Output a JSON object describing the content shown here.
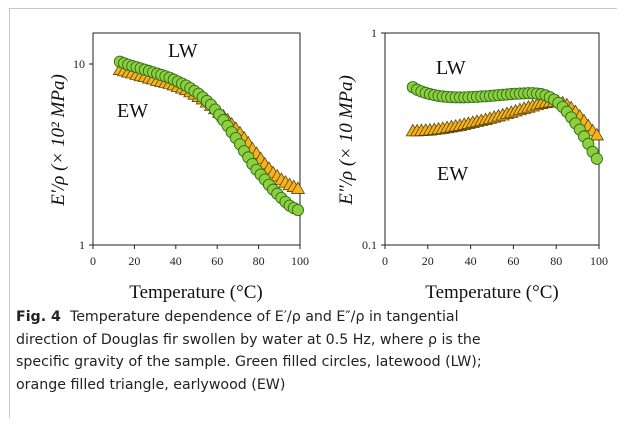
{
  "caption": {
    "label": "Fig. 4",
    "line1": "Temperature dependence of E′/ρ and E″/ρ in tangential",
    "line2": "direction of Douglas fir swollen by water at 0.5 Hz, where ρ is the",
    "line3": "specific gravity of the sample. Green filled circles, latewood (LW);",
    "line4": "orange filled triangle, earlywood (EW)"
  },
  "colors": {
    "lw_fill": "#8dcf3f",
    "lw_stroke": "#2e6d17",
    "ew_fill": "#f5b21a",
    "ew_stroke": "#5a4310"
  },
  "chart_data": [
    {
      "type": "scatter",
      "ylabel": "E′/ρ (× 10² MPa)",
      "xlabel": "Temperature (°C)",
      "xlim": [
        0,
        100
      ],
      "ylim": [
        1,
        15
      ],
      "y_scale": "log",
      "xticks": [
        "0",
        "20",
        "40",
        "60",
        "80",
        "100"
      ],
      "yticks": [
        "1",
        "10"
      ],
      "grid": false,
      "series": [
        {
          "name": "LW",
          "x": [
            13,
            15,
            17,
            19,
            21,
            23,
            25,
            27,
            29,
            31,
            33,
            35,
            37,
            39,
            41,
            43,
            45,
            47,
            49,
            51,
            53,
            55,
            57,
            59,
            61,
            63,
            65,
            67,
            69,
            71,
            73,
            75,
            77,
            79,
            81,
            83,
            85,
            87,
            89,
            91,
            93,
            95,
            97,
            99
          ],
          "y": [
            10.3,
            10.1,
            9.9,
            9.75,
            9.6,
            9.45,
            9.3,
            9.15,
            9.0,
            8.85,
            8.7,
            8.55,
            8.4,
            8.2,
            8.0,
            7.8,
            7.6,
            7.35,
            7.1,
            6.85,
            6.55,
            6.25,
            5.95,
            5.6,
            5.25,
            4.9,
            4.55,
            4.2,
            3.9,
            3.6,
            3.3,
            3.05,
            2.8,
            2.6,
            2.45,
            2.3,
            2.15,
            2.02,
            1.92,
            1.82,
            1.73,
            1.65,
            1.6,
            1.56
          ]
        },
        {
          "name": "EW",
          "x": [
            13,
            15,
            17,
            19,
            21,
            23,
            25,
            27,
            29,
            31,
            33,
            35,
            37,
            39,
            41,
            43,
            45,
            47,
            49,
            51,
            53,
            55,
            57,
            59,
            61,
            63,
            65,
            67,
            69,
            71,
            73,
            75,
            77,
            79,
            81,
            83,
            85,
            87,
            89,
            91,
            93,
            95,
            97,
            99
          ],
          "y": [
            9.3,
            9.15,
            9.0,
            8.9,
            8.75,
            8.6,
            8.5,
            8.35,
            8.25,
            8.1,
            8.0,
            7.9,
            7.8,
            7.65,
            7.5,
            7.35,
            7.2,
            7.0,
            6.8,
            6.6,
            6.4,
            6.15,
            5.9,
            5.65,
            5.4,
            5.15,
            4.9,
            4.65,
            4.4,
            4.15,
            3.9,
            3.65,
            3.4,
            3.2,
            3.0,
            2.8,
            2.65,
            2.5,
            2.4,
            2.3,
            2.22,
            2.15,
            2.1,
            2.05
          ]
        }
      ]
    },
    {
      "type": "scatter",
      "ylabel": "E″/ρ (× 10 MPa)",
      "xlabel": "Temperature (°C)",
      "xlim": [
        0,
        100
      ],
      "ylim": [
        0.1,
        1
      ],
      "y_scale": "log",
      "xticks": [
        "0",
        "20",
        "40",
        "60",
        "80",
        "100"
      ],
      "yticks": [
        "0.1",
        "1"
      ],
      "grid": false,
      "series": [
        {
          "name": "LW",
          "x": [
            13,
            15,
            17,
            19,
            21,
            23,
            25,
            27,
            29,
            31,
            33,
            35,
            37,
            39,
            41,
            43,
            45,
            47,
            49,
            51,
            53,
            55,
            57,
            59,
            61,
            63,
            65,
            67,
            69,
            71,
            73,
            75,
            77,
            79,
            81,
            83,
            85,
            87,
            89,
            91,
            93,
            95,
            97,
            99
          ],
          "y": [
            0.555,
            0.54,
            0.53,
            0.522,
            0.515,
            0.51,
            0.505,
            0.502,
            0.5,
            0.498,
            0.497,
            0.497,
            0.497,
            0.498,
            0.499,
            0.5,
            0.502,
            0.503,
            0.505,
            0.507,
            0.509,
            0.511,
            0.513,
            0.515,
            0.517,
            0.518,
            0.519,
            0.52,
            0.52,
            0.518,
            0.515,
            0.508,
            0.498,
            0.485,
            0.468,
            0.448,
            0.425,
            0.4,
            0.375,
            0.35,
            0.325,
            0.3,
            0.275,
            0.255
          ]
        },
        {
          "name": "EW",
          "x": [
            13,
            15,
            17,
            19,
            21,
            23,
            25,
            27,
            29,
            31,
            33,
            35,
            37,
            39,
            41,
            43,
            45,
            47,
            49,
            51,
            53,
            55,
            57,
            59,
            61,
            63,
            65,
            67,
            69,
            71,
            73,
            75,
            77,
            79,
            81,
            83,
            85,
            87,
            89,
            91,
            93,
            95,
            97,
            99
          ],
          "y": [
            0.345,
            0.345,
            0.346,
            0.347,
            0.348,
            0.35,
            0.352,
            0.354,
            0.357,
            0.36,
            0.363,
            0.366,
            0.37,
            0.374,
            0.378,
            0.382,
            0.386,
            0.39,
            0.395,
            0.4,
            0.405,
            0.41,
            0.416,
            0.422,
            0.428,
            0.434,
            0.44,
            0.446,
            0.452,
            0.458,
            0.464,
            0.468,
            0.472,
            0.474,
            0.473,
            0.468,
            0.458,
            0.443,
            0.425,
            0.405,
            0.385,
            0.365,
            0.345,
            0.33
          ]
        }
      ]
    }
  ]
}
